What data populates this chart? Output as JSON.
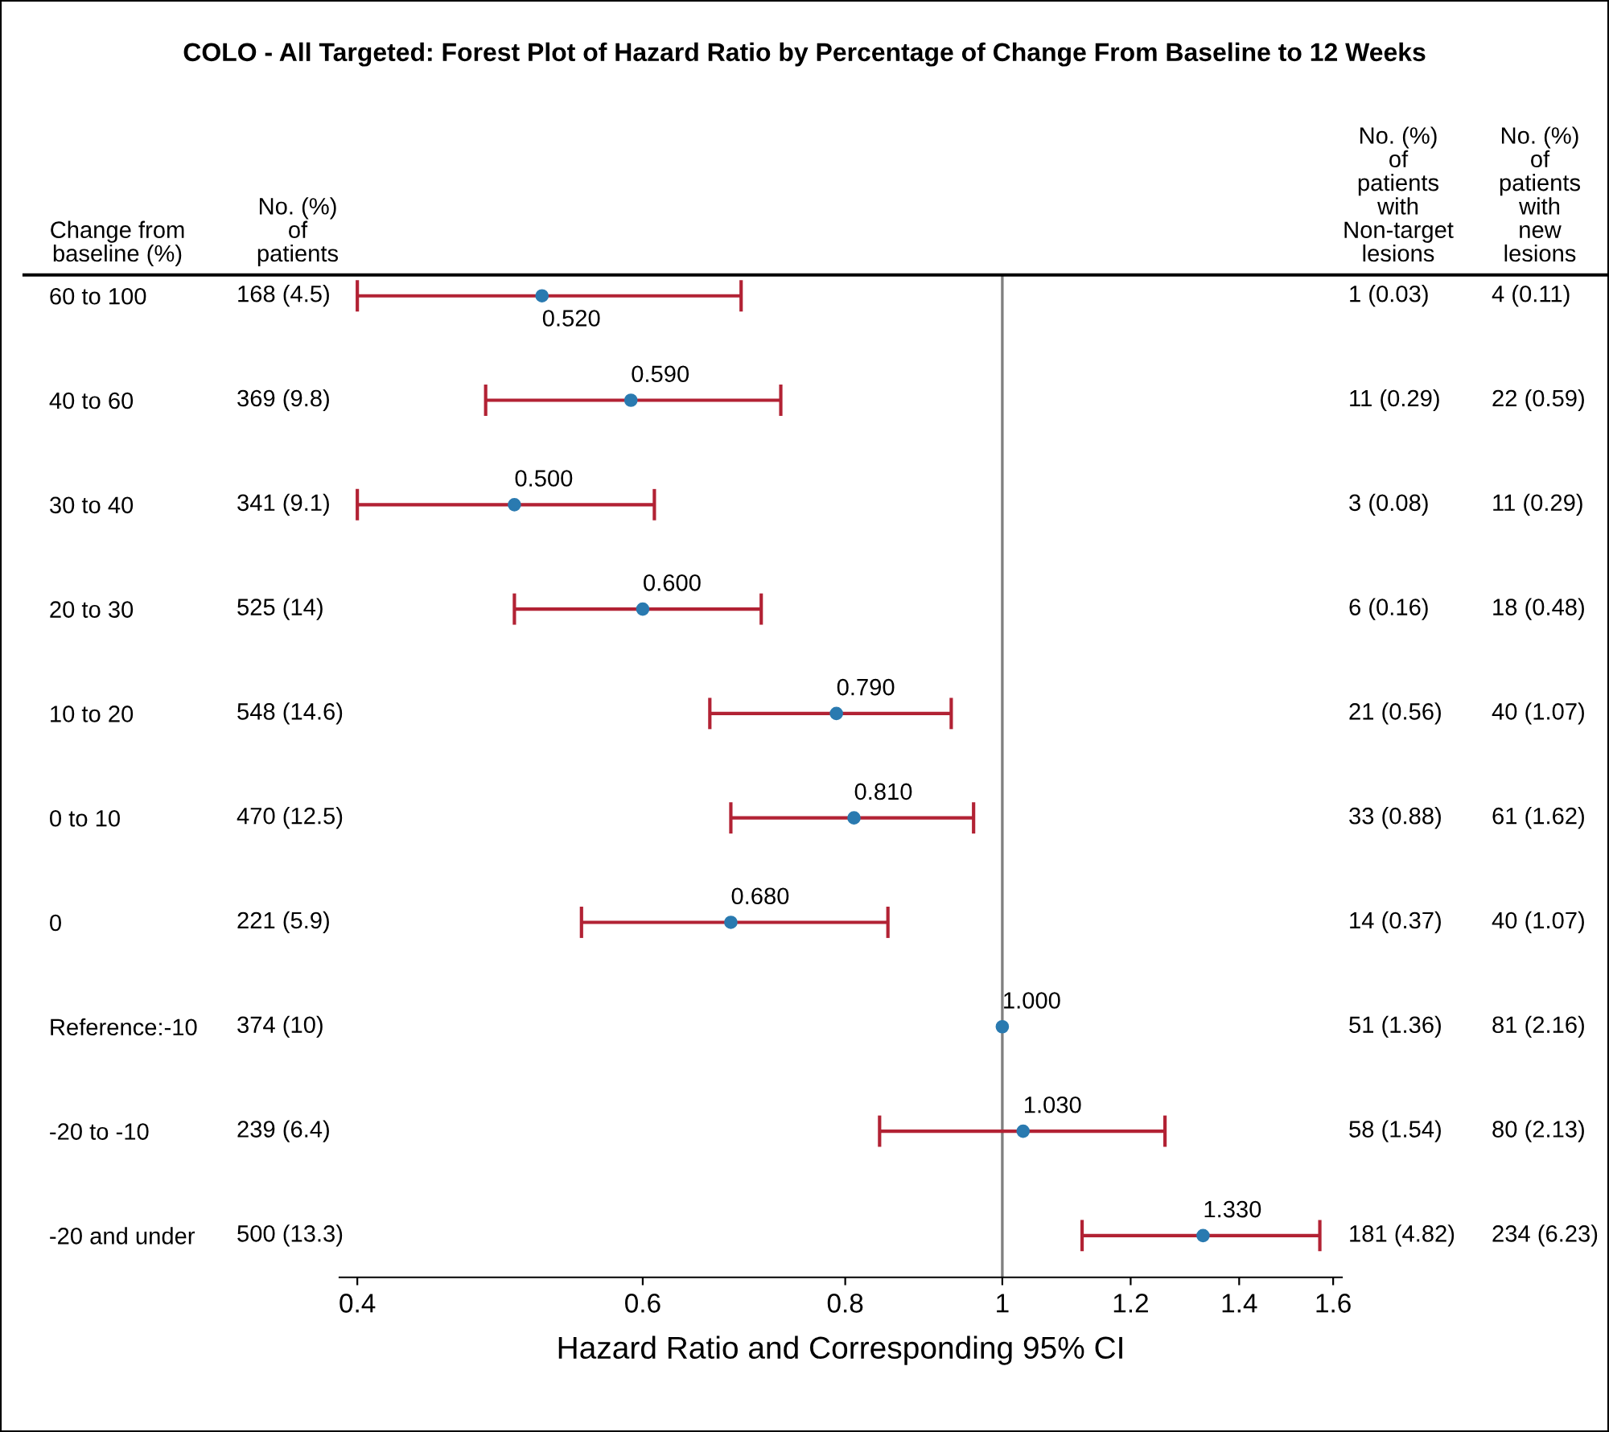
{
  "chart_data": {
    "type": "scatter",
    "orientation": "horizontal",
    "title": "COLO - All Targeted: Forest Plot of Hazard Ratio by Percentage of Change From Baseline to 12 Weeks",
    "xlabel": "Hazard Ratio and Corresponding 95% CI",
    "ylabel": "Change from\nbaseline (%)",
    "categories": [
      "60 to 100",
      "40 to 60",
      "30 to 40",
      "20 to 30",
      "10 to 20",
      "0 to 10",
      "0",
      "Reference:-10",
      "-20 to -10",
      "-20 and under"
    ],
    "series": [
      {
        "color": "#2a7ab0",
        "values": [
          0.52,
          0.59,
          0.5,
          0.6,
          0.79,
          0.81,
          0.68,
          1.0,
          1.03,
          1.33
        ],
        "errors": [
          [
            0.4,
            0.69
          ],
          [
            0.48,
            0.73
          ],
          [
            0.4,
            0.61
          ],
          [
            0.5,
            0.71
          ],
          [
            0.66,
            0.93
          ],
          [
            0.68,
            0.96
          ],
          [
            0.55,
            0.85
          ],
          null,
          [
            0.84,
            1.26
          ],
          [
            1.12,
            1.57
          ]
        ],
        "value_labels": [
          "0.520",
          "0.590",
          "0.500",
          "0.600",
          "0.790",
          "0.810",
          "0.680",
          "1.000",
          "1.030",
          "1.330"
        ]
      }
    ],
    "log": "x",
    "xlim": [
      0.39,
      1.62
    ],
    "xticks": [
      0.4,
      0.6,
      0.8,
      1,
      1.2,
      1.4,
      1.6
    ],
    "ref_lines": [
      {
        "axis": "x",
        "value": 1,
        "color": "#808080"
      }
    ],
    "marker": "circle",
    "grid": false,
    "annotations": [
      "No. (%)\nof\npatients",
      "No. (%)\nof\npatients\nwith\nNon-target\nlesions",
      "No. (%)\nof\npatients\nwith\nnew\nlesions",
      "168 (4.5)",
      "1 (0.03)",
      "4 (0.11)",
      "369 (9.8)",
      "11 (0.29)",
      "22 (0.59)",
      "341 (9.1)",
      "3 (0.08)",
      "11 (0.29)",
      "525 (14)",
      "6 (0.16)",
      "18 (0.48)",
      "548 (14.6)",
      "21 (0.56)",
      "40 (1.07)",
      "470 (12.5)",
      "33 (0.88)",
      "61 (1.62)",
      "221 (5.9)",
      "14 (0.37)",
      "40 (1.07)",
      "374 (10)",
      "51 (1.36)",
      "81 (2.16)",
      "239 (6.4)",
      "58 (1.54)",
      "80 (2.13)",
      "500 (13.3)",
      "181 (4.82)",
      "234 (6.23)"
    ]
  }
}
